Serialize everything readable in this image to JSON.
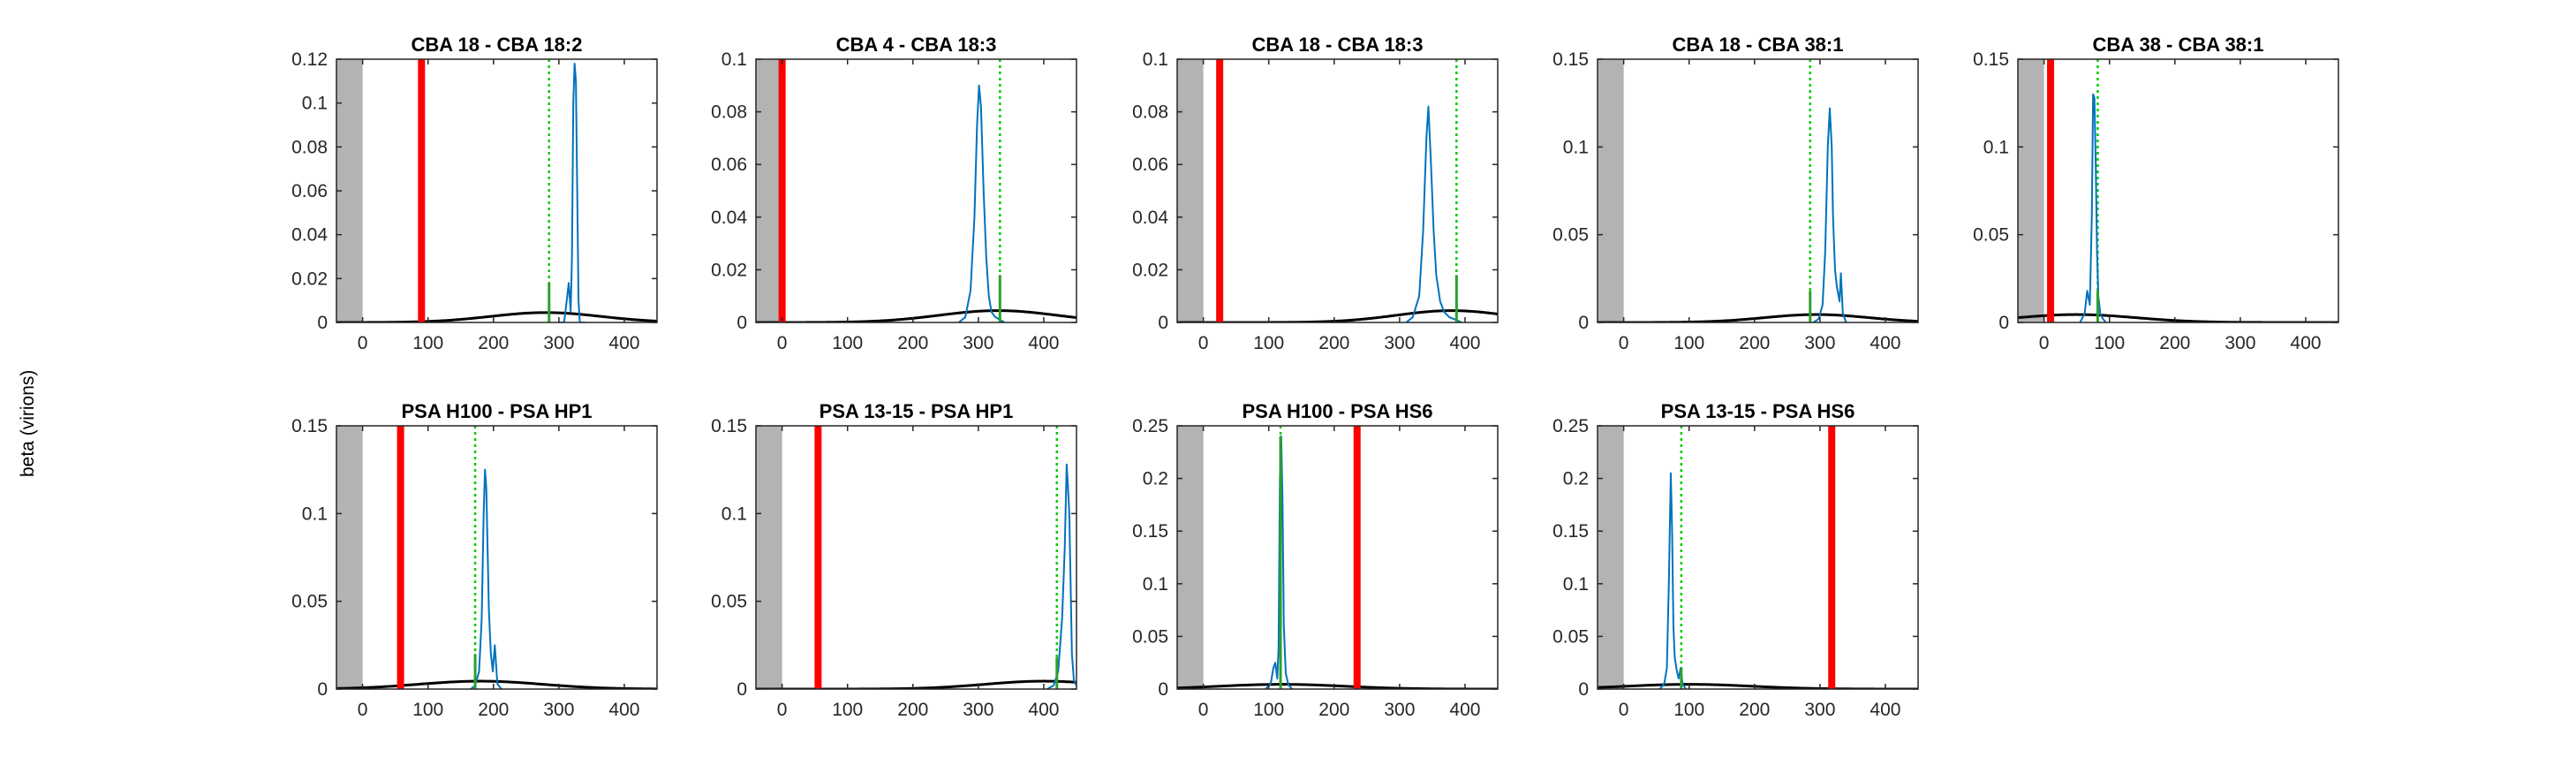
{
  "figure": {
    "ylabel": "beta (virions)"
  },
  "chart_data": [
    {
      "type": "line",
      "title": "CBA 18 - CBA 18:2",
      "xlim": [
        -40,
        450
      ],
      "ylim": [
        0,
        0.12
      ],
      "xticks": [
        0,
        100,
        200,
        300,
        400
      ],
      "yticks": [
        0,
        0.02,
        0.04,
        0.06,
        0.08,
        0.1,
        0.12
      ],
      "ytick_labels": [
        "0",
        "0.02",
        "0.04",
        "0.06",
        "0.08",
        "0.1",
        "0.12"
      ],
      "shaded_region": [
        -40,
        0
      ],
      "red_line_x": 90,
      "green_line_x": 285,
      "green_spike": {
        "x": 285,
        "y": 0.018
      },
      "blue_series": {
        "x": [
          300,
          308,
          312,
          315,
          318,
          320,
          322,
          324,
          326,
          328,
          330,
          332,
          336,
          340
        ],
        "y": [
          0,
          0,
          0.01,
          0.018,
          0.005,
          0.03,
          0.1,
          0.118,
          0.11,
          0.06,
          0.01,
          0,
          0,
          0
        ]
      },
      "prior_curve": {
        "mean": 280,
        "sd": 85,
        "peak": 0.0045
      }
    },
    {
      "type": "line",
      "title": "CBA 4 - CBA 18:3",
      "xlim": [
        -40,
        450
      ],
      "ylim": [
        0,
        0.1
      ],
      "xticks": [
        0,
        100,
        200,
        300,
        400
      ],
      "yticks": [
        0,
        0.02,
        0.04,
        0.06,
        0.08,
        0.1
      ],
      "ytick_labels": [
        "0",
        "0.02",
        "0.04",
        "0.06",
        "0.08",
        "0.1"
      ],
      "shaded_region": [
        -40,
        0
      ],
      "red_line_x": 0,
      "green_line_x": 333,
      "green_spike": {
        "x": 333,
        "y": 0.018
      },
      "blue_series": {
        "x": [
          270,
          280,
          288,
          294,
          298,
          301,
          304,
          308,
          312,
          316,
          320,
          326,
          333,
          340
        ],
        "y": [
          0,
          0.002,
          0.012,
          0.04,
          0.075,
          0.09,
          0.082,
          0.05,
          0.025,
          0.01,
          0.004,
          0.002,
          0.001,
          0
        ]
      },
      "prior_curve": {
        "mean": 330,
        "sd": 90,
        "peak": 0.0045
      }
    },
    {
      "type": "line",
      "title": "CBA 18 - CBA 18:3",
      "xlim": [
        -40,
        450
      ],
      "ylim": [
        0,
        0.1
      ],
      "xticks": [
        0,
        100,
        200,
        300,
        400
      ],
      "yticks": [
        0,
        0.02,
        0.04,
        0.06,
        0.08,
        0.1
      ],
      "ytick_labels": [
        "0",
        "0.02",
        "0.04",
        "0.06",
        "0.08",
        "0.1"
      ],
      "shaded_region": [
        -40,
        0
      ],
      "red_line_x": 25,
      "green_line_x": 387,
      "green_spike": {
        "x": 387,
        "y": 0.018
      },
      "blue_series": {
        "x": [
          310,
          320,
          330,
          336,
          341,
          344,
          348,
          352,
          356,
          362,
          368,
          376,
          386,
          395
        ],
        "y": [
          0,
          0.002,
          0.01,
          0.035,
          0.07,
          0.082,
          0.06,
          0.035,
          0.018,
          0.008,
          0.004,
          0.002,
          0.001,
          0
        ]
      },
      "prior_curve": {
        "mean": 380,
        "sd": 85,
        "peak": 0.0045
      }
    },
    {
      "type": "line",
      "title": "CBA 18 - CBA 38:1",
      "xlim": [
        -40,
        450
      ],
      "ylim": [
        0,
        0.15
      ],
      "xticks": [
        0,
        100,
        200,
        300,
        400
      ],
      "yticks": [
        0,
        0.05,
        0.1,
        0.15
      ],
      "ytick_labels": [
        "0",
        "0.05",
        "0.1",
        "0.15"
      ],
      "shaded_region": [
        -40,
        0
      ],
      "red_line_x": null,
      "green_line_x": 285,
      "green_spike": {
        "x": 285,
        "y": 0.018
      },
      "blue_series": {
        "x": [
          290,
          298,
          304,
          308,
          312,
          315,
          318,
          320,
          323,
          326,
          330,
          332,
          335,
          340
        ],
        "y": [
          0,
          0.002,
          0.01,
          0.04,
          0.1,
          0.122,
          0.1,
          0.06,
          0.03,
          0.02,
          0.012,
          0.028,
          0.005,
          0
        ]
      },
      "prior_curve": {
        "mean": 295,
        "sd": 80,
        "peak": 0.0045
      }
    },
    {
      "type": "line",
      "title": "CBA 38 - CBA 38:1",
      "xlim": [
        -40,
        450
      ],
      "ylim": [
        0,
        0.15
      ],
      "xticks": [
        0,
        100,
        200,
        300,
        400
      ],
      "yticks": [
        0,
        0.05,
        0.1,
        0.15
      ],
      "ytick_labels": [
        "0",
        "0.05",
        "0.1",
        "0.15"
      ],
      "shaded_region": [
        -40,
        0
      ],
      "red_line_x": 10,
      "green_line_x": 82,
      "green_spike": {
        "x": 82,
        "y": 0.018
      },
      "blue_series": {
        "x": [
          55,
          62,
          66,
          70,
          73,
          75,
          77,
          79,
          81,
          83,
          86,
          90,
          95
        ],
        "y": [
          0,
          0.005,
          0.018,
          0.01,
          0.06,
          0.13,
          0.128,
          0.09,
          0.04,
          0.015,
          0.005,
          0.002,
          0
        ]
      },
      "prior_curve": {
        "mean": 50,
        "sd": 90,
        "peak": 0.0045
      }
    },
    {
      "type": "line",
      "title": "PSA H100 - PSA HP1",
      "xlim": [
        -40,
        450
      ],
      "ylim": [
        0,
        0.15
      ],
      "xticks": [
        0,
        100,
        200,
        300,
        400
      ],
      "yticks": [
        0,
        0.05,
        0.1,
        0.15
      ],
      "ytick_labels": [
        "0",
        "0.05",
        "0.1",
        "0.15"
      ],
      "shaded_region": [
        -40,
        0
      ],
      "red_line_x": 58,
      "green_line_x": 172,
      "green_spike": {
        "x": 172,
        "y": 0.02
      },
      "blue_series": {
        "x": [
          165,
          172,
          178,
          182,
          185,
          187,
          189,
          191,
          193,
          196,
          199,
          202,
          206,
          212
        ],
        "y": [
          0,
          0.002,
          0.01,
          0.04,
          0.1,
          0.125,
          0.115,
          0.08,
          0.045,
          0.02,
          0.01,
          0.025,
          0.003,
          0
        ]
      },
      "prior_curve": {
        "mean": 180,
        "sd": 95,
        "peak": 0.0045
      }
    },
    {
      "type": "line",
      "title": "PSA 13-15 - PSA HP1",
      "xlim": [
        -40,
        450
      ],
      "ylim": [
        0,
        0.15
      ],
      "xticks": [
        0,
        100,
        200,
        300,
        400
      ],
      "yticks": [
        0,
        0.05,
        0.1,
        0.15
      ],
      "ytick_labels": [
        "0",
        "0.05",
        "0.1",
        "0.15"
      ],
      "shaded_region": [
        -40,
        0
      ],
      "red_line_x": 55,
      "green_line_x": 420,
      "green_spike": {
        "x": 420,
        "y": 0.018
      },
      "blue_series": {
        "x": [
          405,
          415,
          422,
          428,
          432,
          435,
          437,
          439,
          441,
          443,
          446,
          450
        ],
        "y": [
          0,
          0.002,
          0.01,
          0.04,
          0.08,
          0.128,
          0.115,
          0.1,
          0.06,
          0.02,
          0.005,
          0.002
        ]
      },
      "prior_curve": {
        "mean": 400,
        "sd": 90,
        "peak": 0.0045
      }
    },
    {
      "type": "line",
      "title": "PSA H100 - PSA HS6",
      "xlim": [
        -40,
        450
      ],
      "ylim": [
        0,
        0.25
      ],
      "xticks": [
        0,
        100,
        200,
        300,
        400
      ],
      "yticks": [
        0,
        0.05,
        0.1,
        0.15,
        0.2,
        0.25
      ],
      "ytick_labels": [
        "0",
        "0.05",
        "0.1",
        "0.15",
        "0.2",
        "0.25"
      ],
      "shaded_region": [
        -40,
        0
      ],
      "red_line_x": 235,
      "green_line_x": 118,
      "green_spike": {
        "x": 118,
        "y": 0.24
      },
      "blue_series": {
        "x": [
          95,
          103,
          107,
          110,
          113,
          115,
          117,
          119,
          121,
          123,
          126,
          130,
          136
        ],
        "y": [
          0,
          0.005,
          0.02,
          0.025,
          0.01,
          0.04,
          0.2,
          0.24,
          0.18,
          0.06,
          0.015,
          0.004,
          0
        ]
      },
      "prior_curve": {
        "mean": 120,
        "sd": 95,
        "peak": 0.0045
      }
    },
    {
      "type": "line",
      "title": "PSA 13-15 - PSA HS6",
      "xlim": [
        -40,
        450
      ],
      "ylim": [
        0,
        0.25
      ],
      "xticks": [
        0,
        100,
        200,
        300,
        400
      ],
      "yticks": [
        0,
        0.05,
        0.1,
        0.15,
        0.2,
        0.25
      ],
      "ytick_labels": [
        "0",
        "0.05",
        "0.1",
        "0.15",
        "0.2",
        "0.25"
      ],
      "shaded_region": [
        -40,
        0
      ],
      "red_line_x": 318,
      "green_line_x": 88,
      "green_spike": {
        "x": 88,
        "y": 0.02
      },
      "blue_series": {
        "x": [
          55,
          62,
          66,
          69,
          72,
          74,
          76,
          78,
          81,
          84,
          87,
          90,
          95
        ],
        "y": [
          0,
          0.005,
          0.02,
          0.1,
          0.205,
          0.15,
          0.06,
          0.03,
          0.018,
          0.01,
          0.02,
          0.005,
          0
        ]
      },
      "prior_curve": {
        "mean": 100,
        "sd": 95,
        "peak": 0.0045
      }
    }
  ]
}
